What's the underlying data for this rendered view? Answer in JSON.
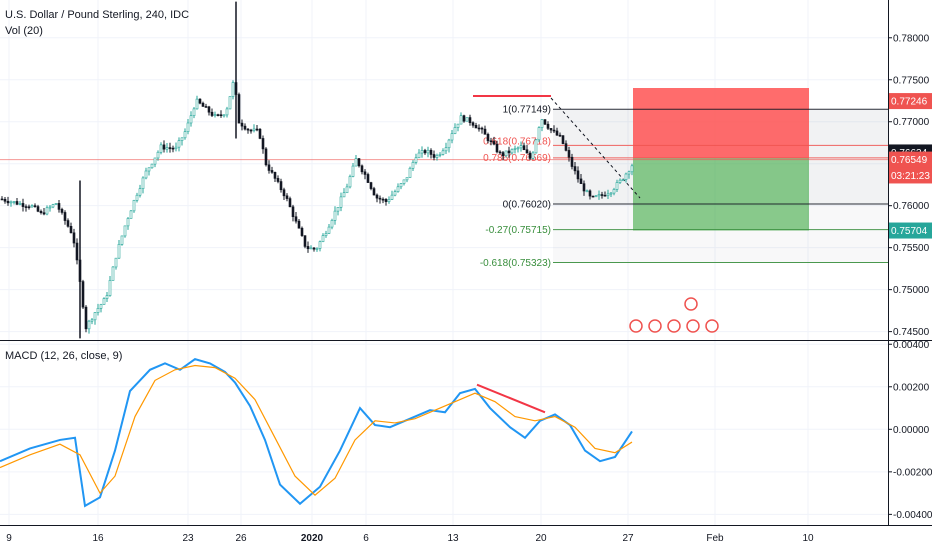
{
  "header": {
    "symbol": "U.S. Dollar / Pound Sterling, 240, IDC",
    "volume": "Vol (20)",
    "macd": "MACD (12, 26, close, 9)"
  },
  "chart_data": [
    {
      "type": "candlestick",
      "title": "U.S. Dollar / Pound Sterling, 240, IDC",
      "ylim": [
        0.744,
        0.7845
      ],
      "y_ticks": [
        "0.78000",
        "0.77500",
        "0.77000",
        "0.76500",
        "0.76000",
        "0.75500",
        "0.75000",
        "0.74500"
      ],
      "x_ticks": [
        "9",
        "16",
        "23",
        "26",
        "2020",
        "6",
        "13",
        "20",
        "27",
        "Feb",
        "10"
      ],
      "close_series": [
        {
          "x": 0,
          "y": 0.7608
        },
        {
          "x": 10,
          "y": 0.7605
        },
        {
          "x": 20,
          "y": 0.7602
        },
        {
          "x": 30,
          "y": 0.76
        },
        {
          "x": 40,
          "y": 0.759
        },
        {
          "x": 55,
          "y": 0.7603
        },
        {
          "x": 65,
          "y": 0.758
        },
        {
          "x": 72,
          "y": 0.7565
        },
        {
          "x": 80,
          "y": 0.75
        },
        {
          "x": 85,
          "y": 0.7455
        },
        {
          "x": 95,
          "y": 0.7475
        },
        {
          "x": 105,
          "y": 0.749
        },
        {
          "x": 115,
          "y": 0.754
        },
        {
          "x": 125,
          "y": 0.758
        },
        {
          "x": 135,
          "y": 0.7612
        },
        {
          "x": 145,
          "y": 0.764
        },
        {
          "x": 160,
          "y": 0.767
        },
        {
          "x": 175,
          "y": 0.7668
        },
        {
          "x": 185,
          "y": 0.769
        },
        {
          "x": 195,
          "y": 0.7725
        },
        {
          "x": 205,
          "y": 0.7715
        },
        {
          "x": 215,
          "y": 0.7705
        },
        {
          "x": 225,
          "y": 0.7712
        },
        {
          "x": 233,
          "y": 0.775
        },
        {
          "x": 238,
          "y": 0.77
        },
        {
          "x": 248,
          "y": 0.769
        },
        {
          "x": 258,
          "y": 0.7688
        },
        {
          "x": 265,
          "y": 0.765
        },
        {
          "x": 275,
          "y": 0.763
        },
        {
          "x": 285,
          "y": 0.761
        },
        {
          "x": 295,
          "y": 0.758
        },
        {
          "x": 305,
          "y": 0.755
        },
        {
          "x": 315,
          "y": 0.7548
        },
        {
          "x": 325,
          "y": 0.757
        },
        {
          "x": 335,
          "y": 0.7595
        },
        {
          "x": 345,
          "y": 0.762
        },
        {
          "x": 355,
          "y": 0.7655
        },
        {
          "x": 365,
          "y": 0.7635
        },
        {
          "x": 375,
          "y": 0.761
        },
        {
          "x": 385,
          "y": 0.7605
        },
        {
          "x": 395,
          "y": 0.7618
        },
        {
          "x": 405,
          "y": 0.7632
        },
        {
          "x": 415,
          "y": 0.766
        },
        {
          "x": 425,
          "y": 0.7665
        },
        {
          "x": 435,
          "y": 0.7658
        },
        {
          "x": 445,
          "y": 0.7672
        },
        {
          "x": 452,
          "y": 0.769
        },
        {
          "x": 460,
          "y": 0.7705
        },
        {
          "x": 470,
          "y": 0.77
        },
        {
          "x": 480,
          "y": 0.769
        },
        {
          "x": 490,
          "y": 0.7675
        },
        {
          "x": 500,
          "y": 0.766
        },
        {
          "x": 510,
          "y": 0.7665
        },
        {
          "x": 520,
          "y": 0.767
        },
        {
          "x": 530,
          "y": 0.7655
        },
        {
          "x": 540,
          "y": 0.7705
        },
        {
          "x": 550,
          "y": 0.769
        },
        {
          "x": 560,
          "y": 0.768
        },
        {
          "x": 570,
          "y": 0.765
        },
        {
          "x": 580,
          "y": 0.7625
        },
        {
          "x": 590,
          "y": 0.7608
        },
        {
          "x": 600,
          "y": 0.7612
        },
        {
          "x": 610,
          "y": 0.7618
        },
        {
          "x": 620,
          "y": 0.763
        },
        {
          "x": 632,
          "y": 0.765
        }
      ],
      "price_tags": [
        {
          "label": "0.77246",
          "value": 0.77246,
          "color": "#ef5350"
        },
        {
          "label": "0.76634",
          "value": 0.76634,
          "color": "#131722"
        },
        {
          "label": "0.76549",
          "value": 0.76549,
          "color": "#ef5350"
        },
        {
          "label": "03:21:23",
          "value": 0.7636,
          "color": "#ef5350"
        },
        {
          "label": "0.75704",
          "value": 0.75704,
          "color": "#26a69a"
        }
      ],
      "fib_levels": [
        {
          "label": "1(0.77149)",
          "value": 0.77149
        },
        {
          "label": "0.618(0.76718)",
          "value": 0.76718
        },
        {
          "label": "0.786(0.76569)",
          "value": 0.76569
        },
        {
          "label": "0(0.76020)",
          "value": 0.7602
        },
        {
          "label": "-0.27(0.75715)",
          "value": 0.75715
        },
        {
          "label": "-0.618(0.75323)",
          "value": 0.75323
        }
      ],
      "position": {
        "entry": 0.76569,
        "stop": 0.77246,
        "target": 0.75704
      }
    },
    {
      "type": "line",
      "title": "MACD (12, 26, close, 9)",
      "ylim": [
        -0.0045,
        0.0042
      ],
      "y_ticks": [
        "0.00400",
        "0.00200",
        "0.00000",
        "-0.00200",
        "-0.00400"
      ],
      "series": [
        {
          "name": "MACD",
          "color": "#2196f3",
          "points": [
            {
              "x": 0,
              "y": -0.0015
            },
            {
              "x": 30,
              "y": -0.0009
            },
            {
              "x": 60,
              "y": -0.0005
            },
            {
              "x": 75,
              "y": -0.0004
            },
            {
              "x": 85,
              "y": -0.0036
            },
            {
              "x": 100,
              "y": -0.0032
            },
            {
              "x": 115,
              "y": -0.001
            },
            {
              "x": 130,
              "y": 0.0018
            },
            {
              "x": 150,
              "y": 0.0028
            },
            {
              "x": 165,
              "y": 0.0031
            },
            {
              "x": 180,
              "y": 0.0028
            },
            {
              "x": 195,
              "y": 0.0033
            },
            {
              "x": 210,
              "y": 0.0031
            },
            {
              "x": 225,
              "y": 0.0027
            },
            {
              "x": 235,
              "y": 0.0022
            },
            {
              "x": 250,
              "y": 0.0011
            },
            {
              "x": 265,
              "y": -0.0005
            },
            {
              "x": 280,
              "y": -0.0026
            },
            {
              "x": 300,
              "y": -0.0035
            },
            {
              "x": 320,
              "y": -0.0027
            },
            {
              "x": 340,
              "y": -0.001
            },
            {
              "x": 360,
              "y": 0.001
            },
            {
              "x": 375,
              "y": 0.0002
            },
            {
              "x": 390,
              "y": 0.0001
            },
            {
              "x": 410,
              "y": 0.0005
            },
            {
              "x": 430,
              "y": 0.0009
            },
            {
              "x": 445,
              "y": 0.0008
            },
            {
              "x": 460,
              "y": 0.0017
            },
            {
              "x": 475,
              "y": 0.0019
            },
            {
              "x": 490,
              "y": 0.001
            },
            {
              "x": 510,
              "y": 0.0001
            },
            {
              "x": 525,
              "y": -0.0004
            },
            {
              "x": 540,
              "y": 0.0004
            },
            {
              "x": 555,
              "y": 0.0007
            },
            {
              "x": 570,
              "y": 0.0002
            },
            {
              "x": 585,
              "y": -0.001
            },
            {
              "x": 600,
              "y": -0.0015
            },
            {
              "x": 615,
              "y": -0.0013
            },
            {
              "x": 632,
              "y": -0.0001
            }
          ]
        },
        {
          "name": "Signal",
          "color": "#ff9800",
          "points": [
            {
              "x": 0,
              "y": -0.0018
            },
            {
              "x": 30,
              "y": -0.0012
            },
            {
              "x": 60,
              "y": -0.0007
            },
            {
              "x": 80,
              "y": -0.0012
            },
            {
              "x": 100,
              "y": -0.003
            },
            {
              "x": 115,
              "y": -0.0022
            },
            {
              "x": 135,
              "y": 0.0006
            },
            {
              "x": 155,
              "y": 0.0023
            },
            {
              "x": 175,
              "y": 0.0028
            },
            {
              "x": 195,
              "y": 0.003
            },
            {
              "x": 215,
              "y": 0.0029
            },
            {
              "x": 235,
              "y": 0.0024
            },
            {
              "x": 255,
              "y": 0.0014
            },
            {
              "x": 275,
              "y": -0.0004
            },
            {
              "x": 295,
              "y": -0.0022
            },
            {
              "x": 315,
              "y": -0.0031
            },
            {
              "x": 335,
              "y": -0.0023
            },
            {
              "x": 355,
              "y": -0.0005
            },
            {
              "x": 375,
              "y": 0.0004
            },
            {
              "x": 395,
              "y": 0.0003
            },
            {
              "x": 415,
              "y": 0.0005
            },
            {
              "x": 435,
              "y": 0.0009
            },
            {
              "x": 455,
              "y": 0.0013
            },
            {
              "x": 475,
              "y": 0.0017
            },
            {
              "x": 495,
              "y": 0.0013
            },
            {
              "x": 515,
              "y": 0.0006
            },
            {
              "x": 535,
              "y": 0.0004
            },
            {
              "x": 555,
              "y": 0.0006
            },
            {
              "x": 575,
              "y": 0.0001
            },
            {
              "x": 595,
              "y": -0.0009
            },
            {
              "x": 615,
              "y": -0.0011
            },
            {
              "x": 632,
              "y": -0.0006
            }
          ]
        }
      ]
    }
  ]
}
